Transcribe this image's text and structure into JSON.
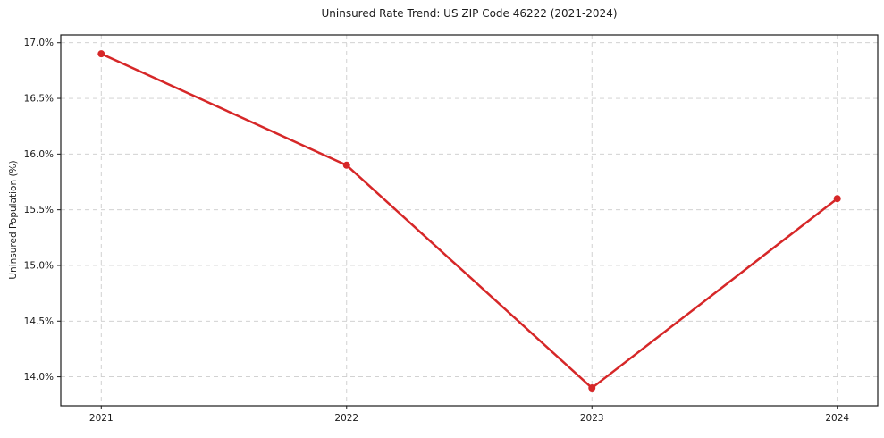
{
  "chart_data": {
    "type": "line",
    "title": "Uninsured Rate Trend: US ZIP Code 46222 (2021-2024)",
    "xlabel": "",
    "ylabel": "Uninsured Population (%)",
    "x": [
      2021,
      2022,
      2023,
      2024
    ],
    "values": [
      16.9,
      15.9,
      13.9,
      15.6
    ],
    "xticks": [
      2021,
      2022,
      2023,
      2024
    ],
    "xtick_labels": [
      "2021",
      "2022",
      "2023",
      "2024"
    ],
    "yticks": [
      14.0,
      14.5,
      15.0,
      15.5,
      16.0,
      16.5,
      17.0
    ],
    "ytick_labels": [
      "14.0%",
      "14.5%",
      "15.0%",
      "15.5%",
      "16.0%",
      "16.5%",
      "17.0%"
    ],
    "xlim": [
      2020.835,
      2024.165
    ],
    "ylim": [
      13.74,
      17.07
    ],
    "grid": true,
    "grid_style": "dashed",
    "legend": false,
    "legend_position": "none",
    "line_color": "#d62728",
    "marker": "circle",
    "marker_color": "#d62728",
    "grid_color": "#cccccc",
    "spine_color": "#1a1a1a",
    "background": "#ffffff"
  }
}
